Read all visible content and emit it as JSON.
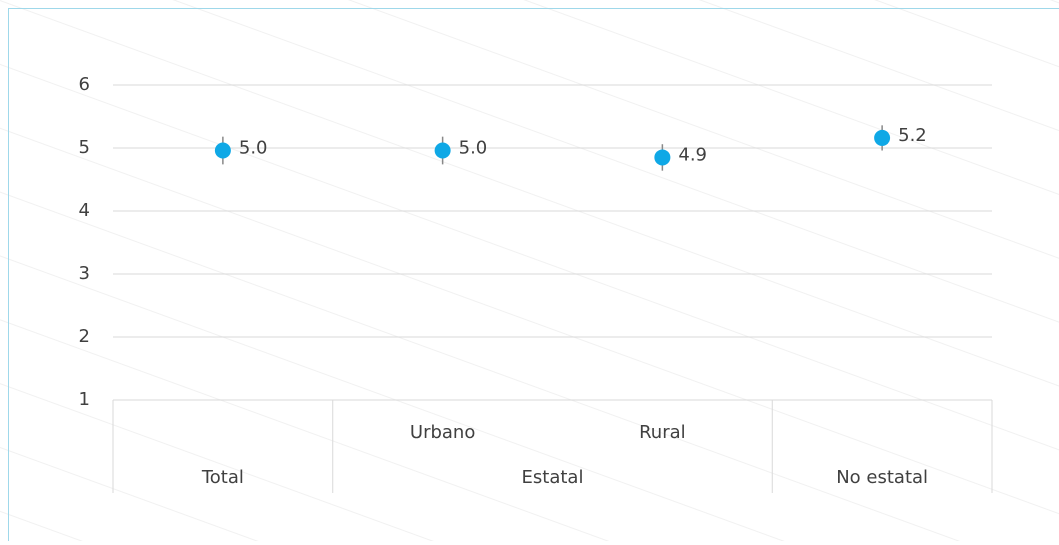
{
  "chart_data": {
    "type": "dot-error",
    "categories": [
      null,
      "Urbano",
      "Rural",
      null
    ],
    "groups": [
      {
        "label": "Total",
        "span": 1
      },
      {
        "label": "Estatal",
        "span": 2
      },
      {
        "label": "No estatal",
        "span": 1
      }
    ],
    "values": [
      4.96,
      4.96,
      4.85,
      5.16
    ],
    "value_labels": [
      "5.0",
      "5.0",
      "4.9",
      "5.2"
    ],
    "errors": [
      0.22,
      0.22,
      0.21,
      0.2
    ],
    "color": "#0fa8e6",
    "ylim": [
      1,
      6
    ],
    "yticks": [
      1,
      2,
      3,
      4,
      5,
      6
    ],
    "grid": true
  }
}
